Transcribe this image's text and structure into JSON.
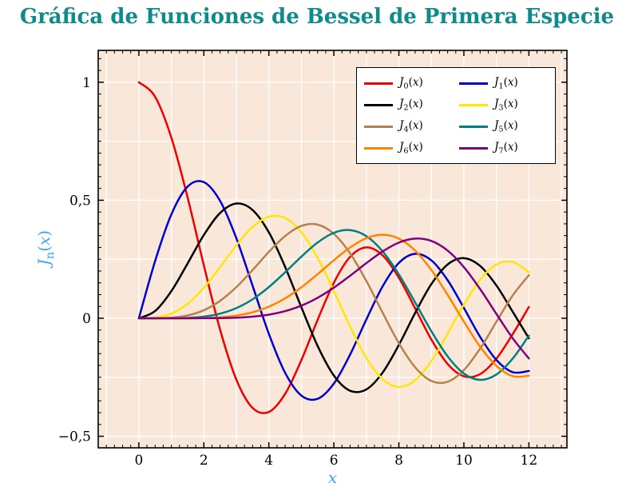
{
  "colors": {
    "title": "#0e8b8b",
    "axis_label": "#42a5f0",
    "plot_bg": "#f9e8d9",
    "grid": "#ffffff",
    "axis": "#000000",
    "tick_label": "#000000",
    "legend_bg": "#ffffff",
    "legend_border": "#000000"
  },
  "chart_data": {
    "type": "line",
    "title": "Gráfica de Funciones de Bessel de Primera Especie",
    "xlabel": "x",
    "ylabel": "J_n(x)",
    "xlim": [
      -1.25,
      13.17
    ],
    "ylim": [
      -0.549,
      1.135
    ],
    "x_ticks": {
      "values": [
        0,
        2,
        4,
        6,
        8,
        10,
        12
      ],
      "labels": [
        "0",
        "2",
        "4",
        "6",
        "8",
        "10",
        "12"
      ]
    },
    "y_ticks": {
      "values": [
        1,
        0.5,
        0,
        -0.5
      ],
      "labels": [
        "1",
        "0,5",
        "0",
        "−0,5"
      ]
    },
    "x_minor_tick_step": 0.25,
    "y_minor_tick_step": 0.05,
    "grid": {
      "on": true,
      "x_step": 1,
      "y_step": 0.25
    },
    "legend_position": "top-right",
    "x": [
      0,
      0.5,
      1,
      1.5,
      2,
      2.5,
      3,
      3.5,
      4,
      4.5,
      5,
      5.5,
      6,
      6.5,
      7,
      7.5,
      8,
      8.5,
      9,
      9.5,
      10,
      10.5,
      11,
      11.5,
      12
    ],
    "series": [
      {
        "label": "J_0(x)",
        "color": "#ee0000",
        "values": [
          1,
          0.9385,
          0.7652,
          0.5118,
          0.2239,
          -0.0484,
          -0.2601,
          -0.3801,
          -0.3971,
          -0.3205,
          -0.1776,
          -0.0068,
          0.1506,
          0.2601,
          0.3001,
          0.2663,
          0.1717,
          0.0419,
          -0.0903,
          -0.1939,
          -0.2459,
          -0.2366,
          -0.1712,
          -0.0677,
          0.0477
        ]
      },
      {
        "label": "J_1(x)",
        "color": "#0000cd",
        "values": [
          0,
          0.2423,
          0.4401,
          0.5579,
          0.5767,
          0.4971,
          0.3391,
          0.1374,
          -0.066,
          -0.2311,
          -0.3276,
          -0.3414,
          -0.2767,
          -0.1538,
          -0.0047,
          0.1352,
          0.2346,
          0.2731,
          0.2453,
          0.1613,
          0.0435,
          -0.0789,
          -0.1768,
          -0.2284,
          -0.2234
        ]
      },
      {
        "label": "J_2(x)",
        "color": "#000000",
        "values": [
          0,
          0.0306,
          0.1149,
          0.2321,
          0.3528,
          0.4461,
          0.4861,
          0.4586,
          0.3641,
          0.2178,
          0.0466,
          -0.1173,
          -0.2429,
          -0.3074,
          -0.3014,
          -0.2303,
          -0.113,
          0.0224,
          0.1448,
          0.2279,
          0.2546,
          0.2216,
          0.139,
          0.028,
          -0.0849
        ]
      },
      {
        "label": "J_3(x)",
        "color": "#ffe60a",
        "values": [
          0,
          0.0026,
          0.0196,
          0.061,
          0.1289,
          0.2166,
          0.3091,
          0.3868,
          0.4302,
          0.4247,
          0.3648,
          0.2561,
          0.1148,
          -0.0353,
          -0.1676,
          -0.2581,
          -0.2911,
          -0.2626,
          -0.1809,
          -0.0653,
          0.0584,
          0.1633,
          0.2273,
          0.2381,
          0.1951
        ]
      },
      {
        "label": "J_4(x)",
        "color": "#b5824f",
        "values": [
          0,
          0.0002,
          0.0025,
          0.0118,
          0.034,
          0.0738,
          0.132,
          0.2044,
          0.2811,
          0.3484,
          0.3912,
          0.3967,
          0.3576,
          0.2748,
          0.1578,
          0.0238,
          -0.1054,
          -0.2077,
          -0.2655,
          -0.2691,
          -0.2196,
          -0.1283,
          -0.015,
          0.0963,
          0.1825
        ]
      },
      {
        "label": "J_5(x)",
        "color": "#008080",
        "values": [
          0,
          0,
          0.0002,
          0.0018,
          0.007,
          0.0195,
          0.043,
          0.0804,
          0.1321,
          0.1947,
          0.2611,
          0.3209,
          0.3621,
          0.3736,
          0.3479,
          0.2835,
          0.1858,
          0.0671,
          -0.055,
          -0.1613,
          -0.2341,
          -0.2611,
          -0.2383,
          -0.1711,
          -0.0735
        ]
      },
      {
        "label": "J_6(x)",
        "color": "#ff8400",
        "values": [
          0,
          0,
          0,
          0.0002,
          0.0012,
          0.0042,
          0.0114,
          0.0256,
          0.0491,
          0.0843,
          0.131,
          0.1868,
          0.2458,
          0.2999,
          0.3392,
          0.3541,
          0.3376,
          0.2867,
          0.2043,
          0.0993,
          -0.0145,
          -0.1204,
          -0.2016,
          -0.2451,
          -0.2437
        ]
      },
      {
        "label": "J_7(x)",
        "color": "#800080",
        "values": [
          0,
          0,
          0,
          0,
          0.0002,
          0.0008,
          0.0025,
          0.0067,
          0.0152,
          0.0301,
          0.0534,
          0.0866,
          0.1296,
          0.1801,
          0.2336,
          0.2832,
          0.3206,
          0.3376,
          0.3275,
          0.2868,
          0.2167,
          0.1236,
          0.0184,
          -0.0846,
          -0.1703
        ]
      }
    ]
  }
}
